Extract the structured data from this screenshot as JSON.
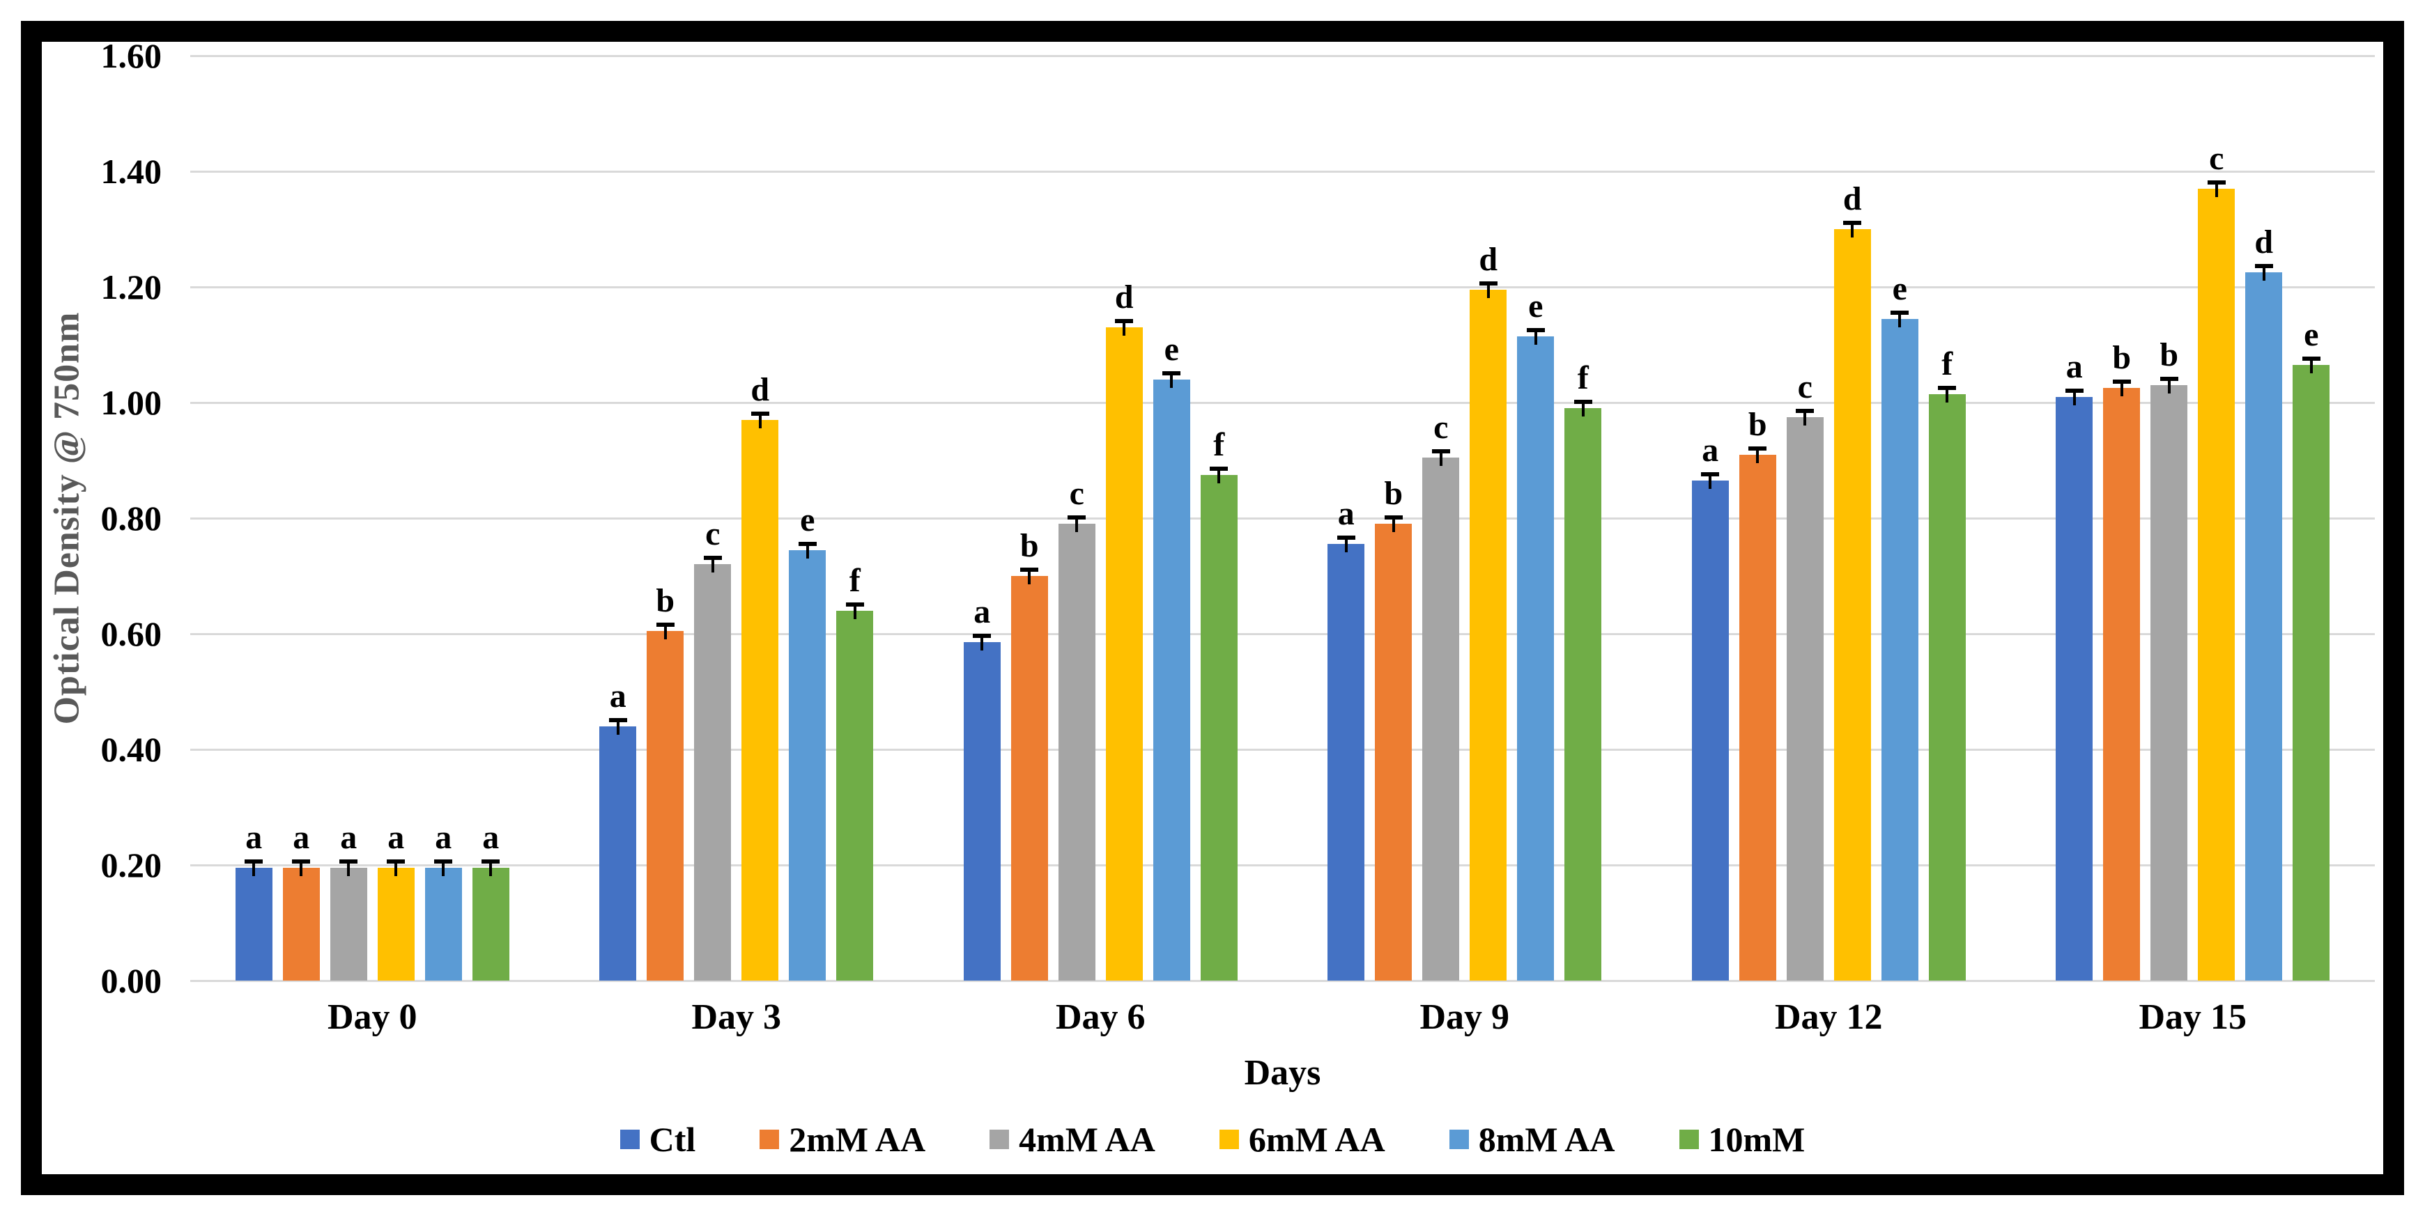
{
  "chart_data": {
    "type": "bar",
    "title": "",
    "xlabel": "Days",
    "ylabel": "Optical Density @ 750nm",
    "categories": [
      "Day 0",
      "Day 3",
      "Day 6",
      "Day 9",
      "Day 12",
      "Day 15"
    ],
    "series": [
      {
        "name": "Ctl",
        "color": "#4472C4",
        "values": [
          0.195,
          0.44,
          0.585,
          0.755,
          0.865,
          1.01
        ],
        "letters": [
          "a",
          "a",
          "a",
          "a",
          "a",
          "a"
        ]
      },
      {
        "name": "2mM AA",
        "color": "#ED7D31",
        "values": [
          0.195,
          0.605,
          0.7,
          0.79,
          0.91,
          1.025
        ],
        "letters": [
          "a",
          "b",
          "b",
          "b",
          "b",
          "b"
        ]
      },
      {
        "name": "4mM AA",
        "color": "#A5A5A5",
        "values": [
          0.195,
          0.72,
          0.79,
          0.905,
          0.975,
          1.03
        ],
        "letters": [
          "a",
          "c",
          "c",
          "c",
          "c",
          "b"
        ]
      },
      {
        "name": "6mM AA",
        "color": "#FFC000",
        "values": [
          0.195,
          0.97,
          1.13,
          1.195,
          1.3,
          1.37
        ],
        "letters": [
          "a",
          "d",
          "d",
          "d",
          "d",
          "c"
        ]
      },
      {
        "name": "8mM AA",
        "color": "#5B9BD5",
        "values": [
          0.195,
          0.745,
          1.04,
          1.115,
          1.145,
          1.225
        ],
        "letters": [
          "a",
          "e",
          "e",
          "e",
          "e",
          "d"
        ]
      },
      {
        "name": "10mM",
        "color": "#70AD47",
        "values": [
          0.195,
          0.64,
          0.875,
          0.99,
          1.015,
          1.065
        ],
        "letters": [
          "a",
          "f",
          "f",
          "f",
          "f",
          "e"
        ]
      }
    ],
    "yticks": [
      "0.00",
      "0.20",
      "0.40",
      "0.60",
      "0.80",
      "1.00",
      "1.20",
      "1.40",
      "1.60"
    ],
    "ylim": [
      0,
      1.6
    ],
    "grid": "horizontal",
    "gridline_color": "#D9D9D9",
    "error_bars": true,
    "error_bar_size": 0.012,
    "legend_position": "bottom"
  }
}
